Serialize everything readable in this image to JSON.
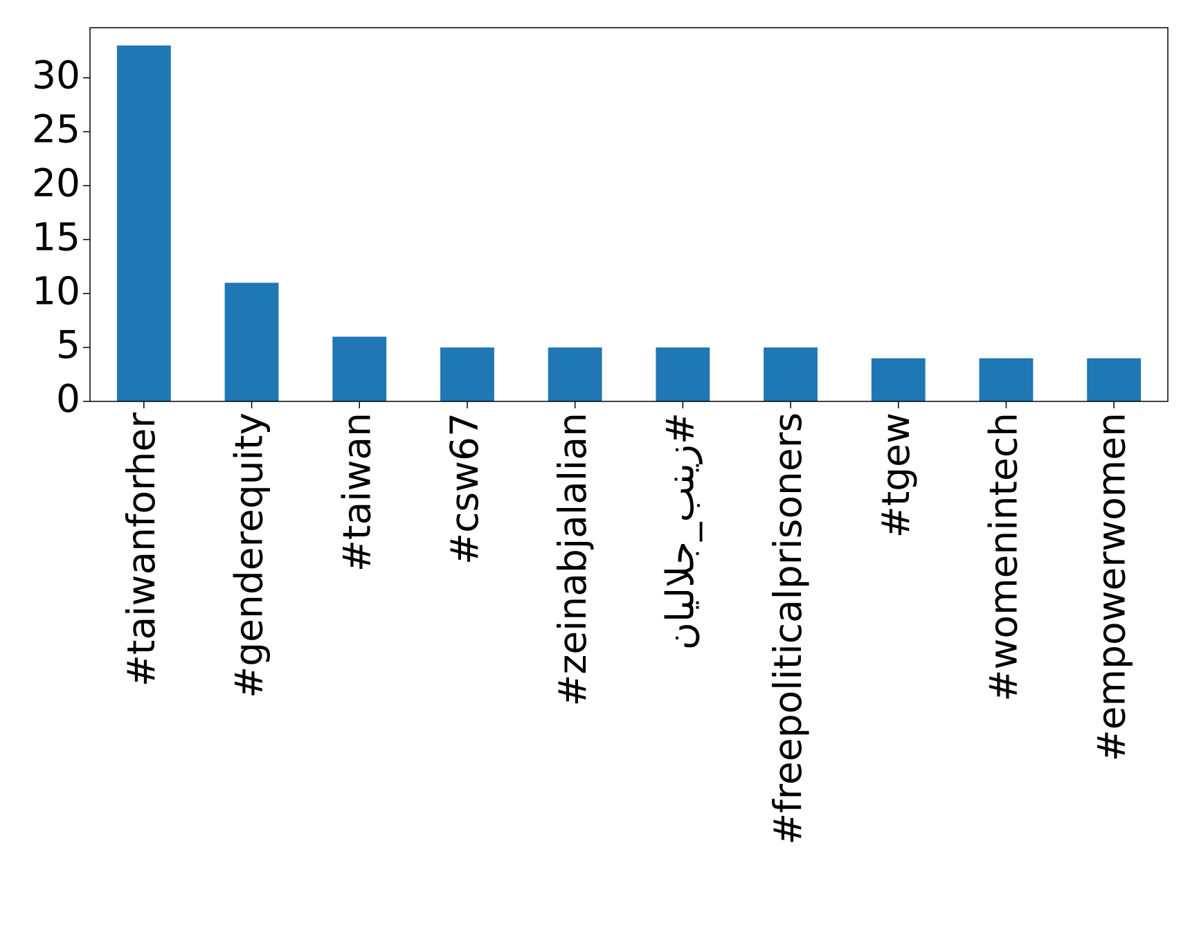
{
  "chart_data": {
    "type": "bar",
    "categories": [
      "#taiwanforher",
      "#genderequity",
      "#taiwan",
      "#csw67",
      "#zeinabjalalian",
      "#زینب_جلالیان",
      "#freepoliticalprisoners",
      "#tgew",
      "#womenintech",
      "#empowerwomen"
    ],
    "values": [
      33,
      11,
      6,
      5,
      5,
      5,
      5,
      4,
      4,
      4
    ],
    "color": "#1f77b4",
    "ylim": [
      0,
      34.65
    ],
    "yticks": [
      0,
      5,
      10,
      15,
      20,
      25,
      30
    ],
    "grid": false
  }
}
